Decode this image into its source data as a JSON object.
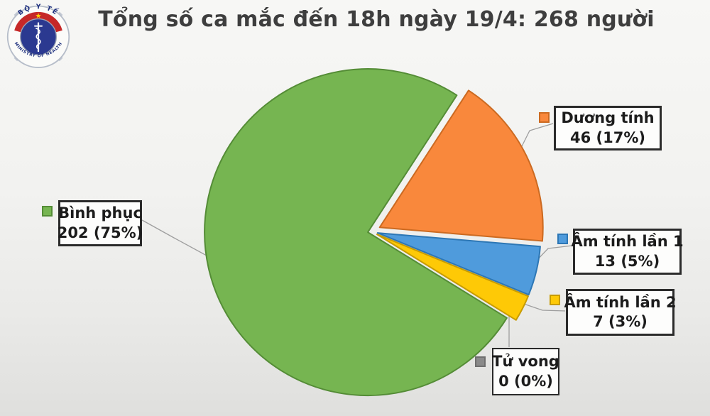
{
  "title": "Tổng số ca mắc đến 18h ngày 19/4: 268 người",
  "logo": {
    "text_top": "BỘ Y TẾ",
    "text_bottom": "MINISTRY OF HEALTH",
    "colors": {
      "ring_text": "#1d2f7e",
      "band": "#c62828",
      "star": "#ffd200",
      "inner_circle": "#2b3990"
    }
  },
  "chart_data": {
    "type": "pie",
    "title": "Tổng số ca mắc đến 18h ngày 19/4: 268 người",
    "total": 268,
    "unit": "người",
    "date_label": "18h ngày 19/4",
    "start_angle_deg": 33,
    "legend_position": "callouts-around-pie",
    "slices": [
      {
        "label": "Dương tính",
        "value": 46,
        "pct": 17,
        "display": "46 (17%)",
        "color": "#f9883c",
        "stroke": "#cc6a21",
        "explode": 13
      },
      {
        "label": "Âm tính lần 1",
        "value": 13,
        "pct": 5,
        "display": "13 (5%)",
        "color": "#4f9bdc",
        "stroke": "#2d77b5",
        "explode": 9
      },
      {
        "label": "Âm tính lần 2",
        "value": 7,
        "pct": 3,
        "display": "7 (3%)",
        "color": "#fec906",
        "stroke": "#c79b00",
        "explode": 9
      },
      {
        "label": "Tử vong",
        "value": 0,
        "pct": 0,
        "display": "0 (0%)",
        "color": "#8a8a8a",
        "stroke": "#6f6f6f",
        "explode": 0
      },
      {
        "label": "Bình phục",
        "value": 202,
        "pct": 75,
        "display": "202 (75%)",
        "color": "#76b551",
        "stroke": "#548c36",
        "explode": 5
      }
    ]
  }
}
